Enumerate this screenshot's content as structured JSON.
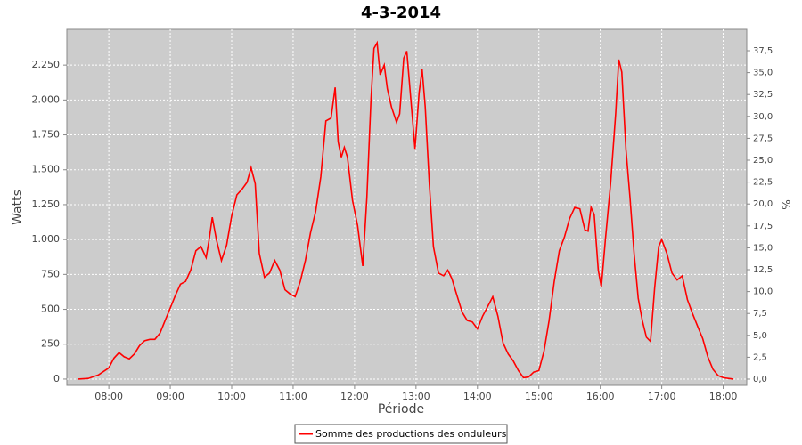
{
  "chart_data": {
    "type": "line",
    "title": "4-3-2014",
    "x_label": "Période",
    "y_label": "Watts",
    "y2_label": "%",
    "x": [
      "07:30",
      "07:40",
      "07:50",
      "08:00",
      "08:05",
      "08:10",
      "08:15",
      "08:20",
      "08:25",
      "08:30",
      "08:35",
      "08:40",
      "08:45",
      "08:50",
      "08:55",
      "09:00",
      "09:05",
      "09:10",
      "09:15",
      "09:20",
      "09:25",
      "09:30",
      "09:35",
      "09:38",
      "09:41",
      "09:45",
      "09:50",
      "09:55",
      "10:00",
      "10:05",
      "10:10",
      "10:15",
      "10:19",
      "10:23",
      "10:27",
      "10:32",
      "10:37",
      "10:42",
      "10:47",
      "10:52",
      "10:57",
      "11:02",
      "11:07",
      "11:12",
      "11:17",
      "11:22",
      "11:27",
      "11:32",
      "11:37",
      "11:41",
      "11:44",
      "11:47",
      "11:50",
      "11:53",
      "11:58",
      "12:03",
      "12:08",
      "12:12",
      "12:16",
      "12:19",
      "12:22",
      "12:25",
      "12:29",
      "12:32",
      "12:36",
      "12:41",
      "12:44",
      "12:48",
      "12:51",
      "12:55",
      "12:59",
      "13:03",
      "13:06",
      "13:09",
      "13:13",
      "13:17",
      "13:22",
      "13:27",
      "13:31",
      "13:35",
      "13:40",
      "13:45",
      "13:50",
      "13:55",
      "14:00",
      "14:05",
      "14:10",
      "14:15",
      "14:20",
      "14:25",
      "14:30",
      "14:35",
      "14:40",
      "14:45",
      "14:50",
      "14:55",
      "15:00",
      "15:05",
      "15:10",
      "15:15",
      "15:20",
      "15:25",
      "15:30",
      "15:35",
      "15:40",
      "15:45",
      "15:48",
      "15:51",
      "15:54",
      "15:58",
      "16:01",
      "16:05",
      "16:10",
      "16:15",
      "16:18",
      "16:21",
      "16:25",
      "16:29",
      "16:33",
      "16:37",
      "16:41",
      "16:45",
      "16:49",
      "16:53",
      "16:57",
      "17:00",
      "17:05",
      "17:10",
      "17:15",
      "17:20",
      "17:25",
      "17:30",
      "17:35",
      "17:40",
      "17:45",
      "17:50",
      "17:55",
      "18:00",
      "18:05",
      "18:10"
    ],
    "series": [
      {
        "name": "Somme des productions des onduleurs",
        "color": "#ff0000",
        "values": [
          0,
          5,
          30,
          80,
          150,
          190,
          160,
          145,
          180,
          240,
          275,
          285,
          285,
          330,
          420,
          510,
          600,
          680,
          700,
          780,
          920,
          950,
          870,
          1000,
          1160,
          1000,
          850,
          960,
          1170,
          1320,
          1360,
          1410,
          1515,
          1400,
          900,
          730,
          760,
          850,
          780,
          640,
          610,
          590,
          700,
          850,
          1050,
          1200,
          1450,
          1850,
          1870,
          2090,
          1700,
          1590,
          1660,
          1590,
          1280,
          1100,
          810,
          1300,
          2000,
          2370,
          2410,
          2180,
          2250,
          2080,
          1950,
          1840,
          1900,
          2300,
          2350,
          2000,
          1650,
          2050,
          2220,
          1950,
          1400,
          950,
          760,
          740,
          780,
          720,
          600,
          480,
          420,
          410,
          360,
          450,
          520,
          590,
          450,
          260,
          180,
          130,
          60,
          10,
          15,
          50,
          60,
          200,
          420,
          700,
          920,
          1020,
          1150,
          1230,
          1220,
          1070,
          1060,
          1230,
          1180,
          780,
          660,
          1000,
          1400,
          1900,
          2290,
          2200,
          1650,
          1300,
          900,
          580,
          420,
          300,
          270,
          650,
          950,
          1000,
          900,
          760,
          710,
          740,
          570,
          470,
          380,
          290,
          160,
          70,
          25,
          10,
          5,
          0
        ]
      }
    ],
    "xlim": [
      "07:19",
      "18:23"
    ],
    "xticks": [
      "08:00",
      "09:00",
      "10:00",
      "11:00",
      "12:00",
      "13:00",
      "14:00",
      "15:00",
      "16:00",
      "17:00",
      "18:00"
    ],
    "ylim": [
      -45,
      2506
    ],
    "yticks": [
      0,
      250,
      500,
      750,
      {
        "value": 1000,
        "label": "1.000"
      },
      {
        "value": 1250,
        "label": "1.250"
      },
      {
        "value": 1500,
        "label": "1.500"
      },
      {
        "value": 1750,
        "label": "1.750"
      },
      {
        "value": 2000,
        "label": "2.000"
      },
      {
        "value": 2250,
        "label": "2.250"
      }
    ],
    "y2lim": [
      -0.71,
      39.94
    ],
    "y2ticks": [
      {
        "value": 0,
        "label": "0,0"
      },
      {
        "value": 2.5,
        "label": "2,5"
      },
      {
        "value": 5,
        "label": "5,0"
      },
      {
        "value": 7.5,
        "label": "7,5"
      },
      {
        "value": 10,
        "label": "10,0"
      },
      {
        "value": 12.5,
        "label": "12,5"
      },
      {
        "value": 15,
        "label": "15,0"
      },
      {
        "value": 17.5,
        "label": "17,5"
      },
      {
        "value": 20,
        "label": "20,0"
      },
      {
        "value": 22.5,
        "label": "22,5"
      },
      {
        "value": 25,
        "label": "25,0"
      },
      {
        "value": 27.5,
        "label": "27,5"
      },
      {
        "value": 30,
        "label": "30,0"
      },
      {
        "value": 32.5,
        "label": "32,5"
      },
      {
        "value": 35,
        "label": "35,0"
      },
      {
        "value": 37.5,
        "label": "37,5"
      }
    ],
    "grid": true,
    "plot_background": "#cccccc",
    "legend": "bottom"
  }
}
